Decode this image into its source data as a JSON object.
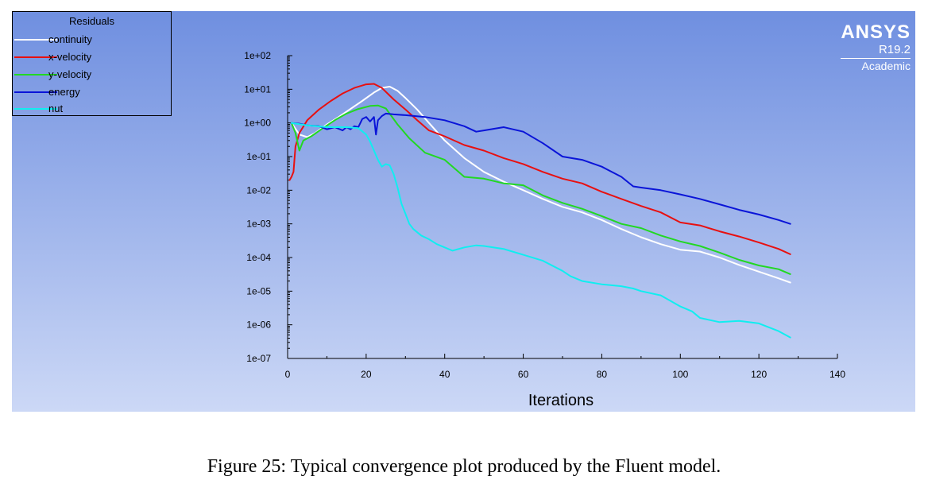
{
  "legend": {
    "title": "Residuals",
    "items": [
      {
        "label": "continuity",
        "color": "#ffffff"
      },
      {
        "label": "x-velocity",
        "color": "#e81010"
      },
      {
        "label": "y-velocity",
        "color": "#22d822"
      },
      {
        "label": "energy",
        "color": "#0a14d8"
      },
      {
        "label": "nut",
        "color": "#10eef0"
      }
    ]
  },
  "logo": {
    "name": "ANSYS",
    "version": "R19.2",
    "edition": "Academic"
  },
  "caption": "Figure 25: Typical convergence plot produced by the Fluent model.",
  "colors": {
    "background_top": "#6f8fe0",
    "background_bottom": "#ccd8f6",
    "axis": "#000000"
  },
  "chart_data": {
    "type": "line",
    "title": "",
    "xlabel": "Iterations",
    "ylabel": "",
    "xlim": [
      0,
      140
    ],
    "ylim": [
      1e-07,
      100
    ],
    "yscale": "log",
    "grid": false,
    "legend_position": "top-left",
    "x_ticks": [
      "0",
      "20",
      "40",
      "60",
      "80",
      "100",
      "120",
      "140"
    ],
    "y_ticks": [
      "1e+02",
      "1e+01",
      "1e+00",
      "1e-01",
      "1e-02",
      "1e-03",
      "1e-04",
      "1e-05",
      "1e-06",
      "1e-07"
    ],
    "series": [
      {
        "name": "continuity",
        "color": "#ffffff",
        "x": [
          1,
          3,
          5,
          7,
          10,
          13,
          16,
          19,
          22,
          24,
          26,
          28,
          30,
          33,
          36,
          40,
          45,
          50,
          55,
          60,
          65,
          70,
          75,
          80,
          85,
          90,
          95,
          100,
          105,
          110,
          115,
          120,
          125,
          128
        ],
        "y": [
          1.0,
          0.45,
          0.38,
          0.5,
          0.9,
          1.5,
          2.6,
          4.5,
          8.0,
          11.0,
          12.0,
          9.0,
          5.5,
          2.5,
          1.0,
          0.3,
          0.09,
          0.035,
          0.018,
          0.01,
          0.0055,
          0.0032,
          0.0022,
          0.0013,
          0.0007,
          0.0004,
          0.00025,
          0.00017,
          0.00015,
          0.0001,
          6e-05,
          3.8e-05,
          2.4e-05,
          1.8e-05
        ]
      },
      {
        "name": "x-velocity",
        "color": "#e81010",
        "x": [
          0.5,
          1,
          1.5,
          2,
          3,
          5,
          8,
          11,
          14,
          17,
          20,
          22,
          24,
          27,
          30,
          33,
          36,
          40,
          45,
          50,
          55,
          60,
          65,
          70,
          75,
          80,
          85,
          90,
          95,
          100,
          105,
          110,
          115,
          120,
          125,
          128
        ],
        "y": [
          0.02,
          0.025,
          0.035,
          0.2,
          0.5,
          1.2,
          2.5,
          4.5,
          7.5,
          11.0,
          14.0,
          14.5,
          11.0,
          5.0,
          2.5,
          1.2,
          0.6,
          0.4,
          0.22,
          0.15,
          0.09,
          0.06,
          0.035,
          0.022,
          0.016,
          0.009,
          0.0055,
          0.0034,
          0.0022,
          0.0011,
          0.0009,
          0.0006,
          0.00042,
          0.00028,
          0.00018,
          0.000125
        ]
      },
      {
        "name": "y-velocity",
        "color": "#22d822",
        "x": [
          1,
          2,
          3,
          4,
          6,
          9,
          12,
          15,
          18,
          21,
          23,
          25,
          28,
          31,
          35,
          40,
          45,
          50,
          55,
          60,
          65,
          70,
          75,
          80,
          85,
          90,
          95,
          100,
          105,
          110,
          115,
          120,
          125,
          128
        ],
        "y": [
          1.0,
          0.5,
          0.15,
          0.3,
          0.4,
          0.7,
          1.2,
          1.9,
          2.6,
          3.2,
          3.3,
          2.7,
          0.9,
          0.35,
          0.13,
          0.08,
          0.025,
          0.022,
          0.016,
          0.014,
          0.007,
          0.0042,
          0.0028,
          0.0017,
          0.001,
          0.00075,
          0.00045,
          0.0003,
          0.00022,
          0.00014,
          8.5e-05,
          5.8e-05,
          4.5e-05,
          3.2e-05
        ]
      },
      {
        "name": "energy",
        "color": "#0a14d8",
        "x": [
          1,
          3,
          5,
          8,
          10,
          12,
          14,
          15,
          16,
          17,
          18,
          19,
          20,
          21,
          22,
          22.5,
          23,
          24,
          25,
          27,
          30,
          35,
          40,
          45,
          48,
          50,
          55,
          60,
          65,
          70,
          75,
          80,
          85,
          88,
          90,
          95,
          100,
          105,
          110,
          115,
          120,
          125,
          128
        ],
        "y": [
          1.0,
          0.95,
          0.85,
          0.8,
          0.65,
          0.75,
          0.6,
          0.75,
          0.65,
          0.8,
          0.75,
          1.3,
          1.5,
          1.1,
          1.5,
          0.45,
          1.2,
          1.6,
          1.9,
          1.8,
          1.7,
          1.5,
          1.2,
          0.8,
          0.55,
          0.6,
          0.75,
          0.55,
          0.25,
          0.1,
          0.08,
          0.05,
          0.025,
          0.013,
          0.012,
          0.01,
          0.0075,
          0.0055,
          0.0038,
          0.0026,
          0.0019,
          0.0013,
          0.001
        ]
      },
      {
        "name": "nut",
        "color": "#10eef0",
        "x": [
          1,
          5,
          10,
          15,
          18,
          20,
          21,
          22,
          23,
          24,
          25,
          26,
          27,
          28,
          29,
          30,
          31,
          32,
          34,
          36,
          38,
          40,
          42,
          45,
          48,
          50,
          55,
          60,
          65,
          70,
          72,
          75,
          80,
          85,
          88,
          90,
          95,
          100,
          103,
          105,
          110,
          115,
          120,
          125,
          128
        ],
        "y": [
          1.0,
          0.85,
          0.75,
          0.75,
          0.7,
          0.45,
          0.28,
          0.15,
          0.08,
          0.05,
          0.06,
          0.055,
          0.03,
          0.012,
          0.004,
          0.002,
          0.001,
          0.0007,
          0.00045,
          0.00035,
          0.00025,
          0.0002,
          0.00016,
          0.0002,
          0.00023,
          0.00022,
          0.00018,
          0.00012,
          8e-05,
          4e-05,
          2.8e-05,
          2e-05,
          1.6e-05,
          1.4e-05,
          1.2e-05,
          1e-05,
          7.5e-06,
          3.5e-06,
          2.5e-06,
          1.6e-06,
          1.2e-06,
          1.3e-06,
          1.1e-06,
          6.5e-07,
          4.2e-07
        ]
      }
    ]
  }
}
